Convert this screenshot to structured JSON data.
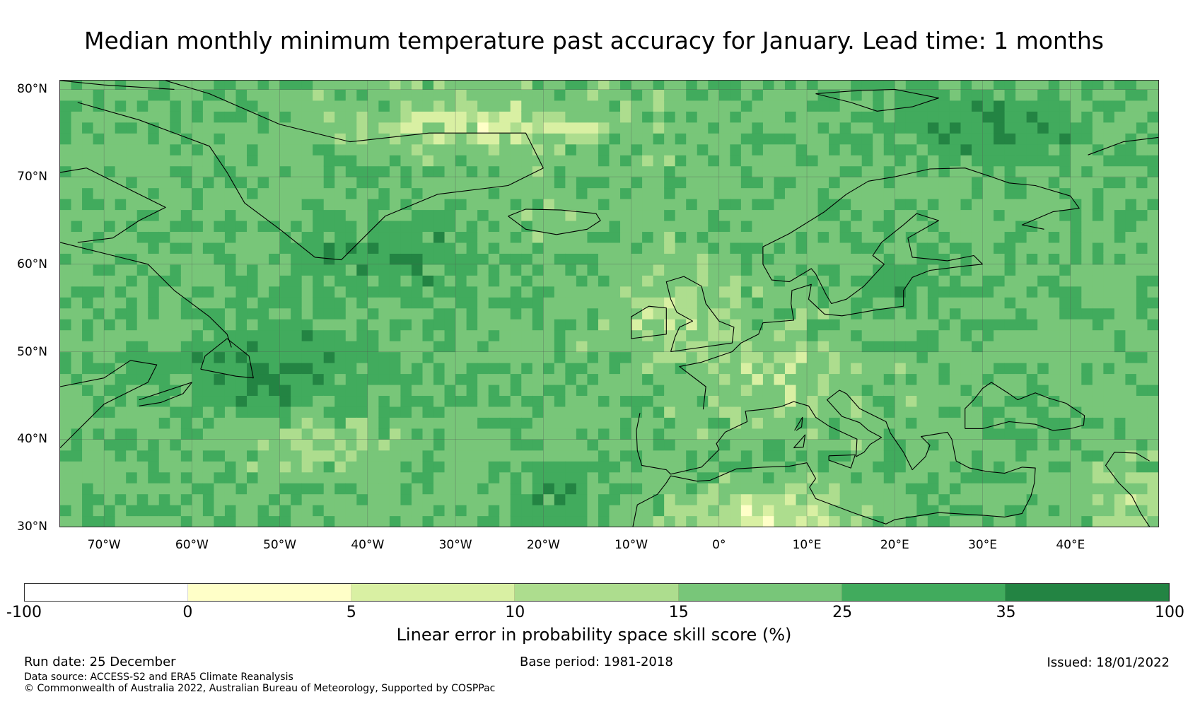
{
  "title": "Median monthly minimum temperature past accuracy for January. Lead time: 1 months",
  "map": {
    "lat_labels": [
      "80°N",
      "70°N",
      "60°N",
      "50°N",
      "40°N",
      "30°N"
    ],
    "lat_values": [
      80,
      70,
      60,
      50,
      40,
      30
    ],
    "lon_labels": [
      "70°W",
      "60°W",
      "50°W",
      "40°W",
      "30°W",
      "20°W",
      "10°W",
      "0°",
      "10°E",
      "20°E",
      "30°E",
      "40°E"
    ],
    "lon_values": [
      -70,
      -60,
      -50,
      -40,
      -30,
      -20,
      -10,
      0,
      10,
      20,
      30,
      40
    ],
    "extent": {
      "lon_min": -75,
      "lon_max": 50,
      "lat_min": 30,
      "lat_max": 81
    },
    "coastline_color": "#000000",
    "grid_color": "#555555"
  },
  "colorbar": {
    "ticks": [
      "-100",
      "0",
      "5",
      "10",
      "15",
      "25",
      "35",
      "100"
    ],
    "bins": [
      {
        "from": -100,
        "to": 0,
        "color": "#ffffff"
      },
      {
        "from": 0,
        "to": 5,
        "color": "#ffffc8"
      },
      {
        "from": 5,
        "to": 10,
        "color": "#d9f0a3"
      },
      {
        "from": 10,
        "to": 15,
        "color": "#addd8e"
      },
      {
        "from": 15,
        "to": 25,
        "color": "#78c679"
      },
      {
        "from": 25,
        "to": 35,
        "color": "#41ab5d"
      },
      {
        "from": 35,
        "to": 100,
        "color": "#238443"
      }
    ],
    "label": "Linear error in probability space skill score (%)"
  },
  "footer": {
    "run_date": "Run date: 25 December",
    "base_period": "Base period: 1981-2018",
    "issued": "Issued: 18/01/2022",
    "data_source": "Data source: ACCESS-S2 and ERA5 Climate Reanalysis",
    "copyright": "© Commonwealth of Australia 2022, Australian Bureau of Meteorology, Supported by COSPPac"
  }
}
